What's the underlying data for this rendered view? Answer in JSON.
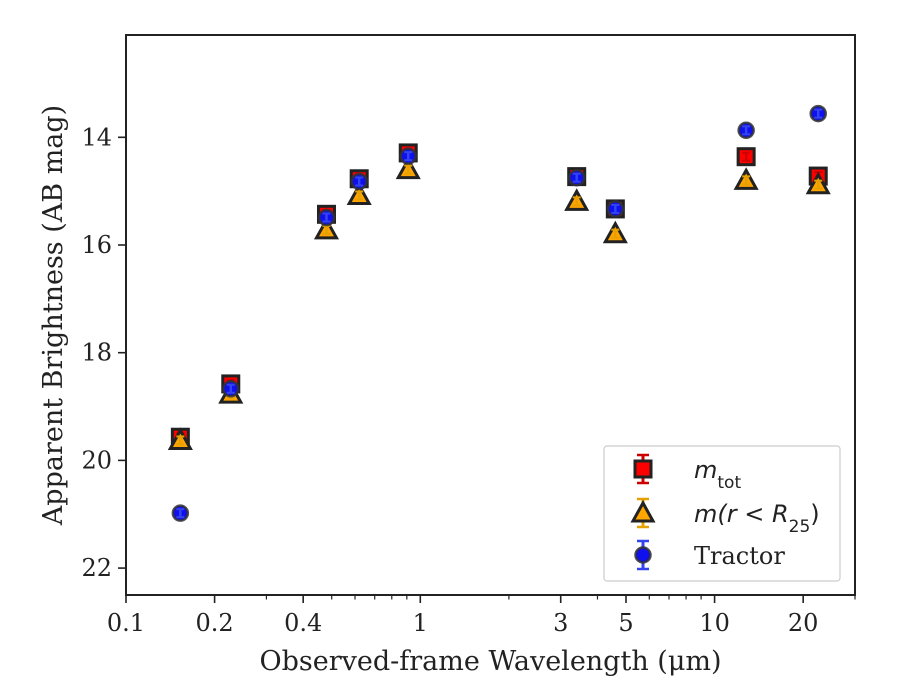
{
  "chart_data": {
    "type": "scatter",
    "xlabel": "Observed-frame Wavelength (μm)",
    "ylabel": "Apparent Brightness (AB mag)",
    "x_scale": "log",
    "xlim": [
      0.1,
      30
    ],
    "ylim": [
      22.5,
      12.1
    ],
    "y_inverted": true,
    "x_ticks": [
      {
        "value": 0.1,
        "label": "0.1"
      },
      {
        "value": 0.2,
        "label": "0.2"
      },
      {
        "value": 0.4,
        "label": "0.4"
      },
      {
        "value": 1,
        "label": "1"
      },
      {
        "value": 3,
        "label": "3"
      },
      {
        "value": 5,
        "label": "5"
      },
      {
        "value": 10,
        "label": "10"
      },
      {
        "value": 20,
        "label": "20"
      }
    ],
    "y_ticks": [
      {
        "value": 14,
        "label": "14"
      },
      {
        "value": 16,
        "label": "16"
      },
      {
        "value": 18,
        "label": "18"
      },
      {
        "value": 20,
        "label": "20"
      },
      {
        "value": 22,
        "label": "22"
      }
    ],
    "grid": false,
    "legend_position": "bottom-right",
    "series": [
      {
        "name": "m_tot",
        "legend_label": "m",
        "legend_sub": "tot",
        "marker": "square",
        "color": "#ff0000",
        "edge_color": "#222222",
        "errbar_color": "#cc0000",
        "x": [
          0.153,
          0.227,
          0.48,
          0.62,
          0.91,
          3.4,
          4.6,
          12.8,
          22.5
        ],
        "y": [
          19.57,
          18.58,
          15.43,
          14.77,
          14.29,
          14.73,
          15.33,
          14.36,
          14.72
        ]
      },
      {
        "name": "m(r<R25)",
        "legend_label": "m(r < R",
        "legend_sub": "25",
        "legend_tail": ")",
        "marker": "triangle",
        "color": "#ffa500",
        "edge_color": "#222222",
        "errbar_color": "#e6a000",
        "x": [
          0.153,
          0.227,
          0.48,
          0.62,
          0.91,
          3.4,
          4.6,
          12.8,
          22.5
        ],
        "y": [
          19.63,
          18.77,
          15.72,
          15.08,
          14.6,
          15.19,
          15.79,
          14.8,
          14.88
        ]
      },
      {
        "name": "Tractor",
        "legend_label": "Tractor",
        "marker": "circle",
        "color": "#1010ee",
        "edge_color": "#333333",
        "errbar_color": "#3344ee",
        "x": [
          0.153,
          0.227,
          0.48,
          0.62,
          0.91,
          3.4,
          4.6,
          12.8,
          22.5
        ],
        "y": [
          20.98,
          18.67,
          15.49,
          14.82,
          14.35,
          14.75,
          15.33,
          13.87,
          13.56
        ]
      }
    ]
  }
}
